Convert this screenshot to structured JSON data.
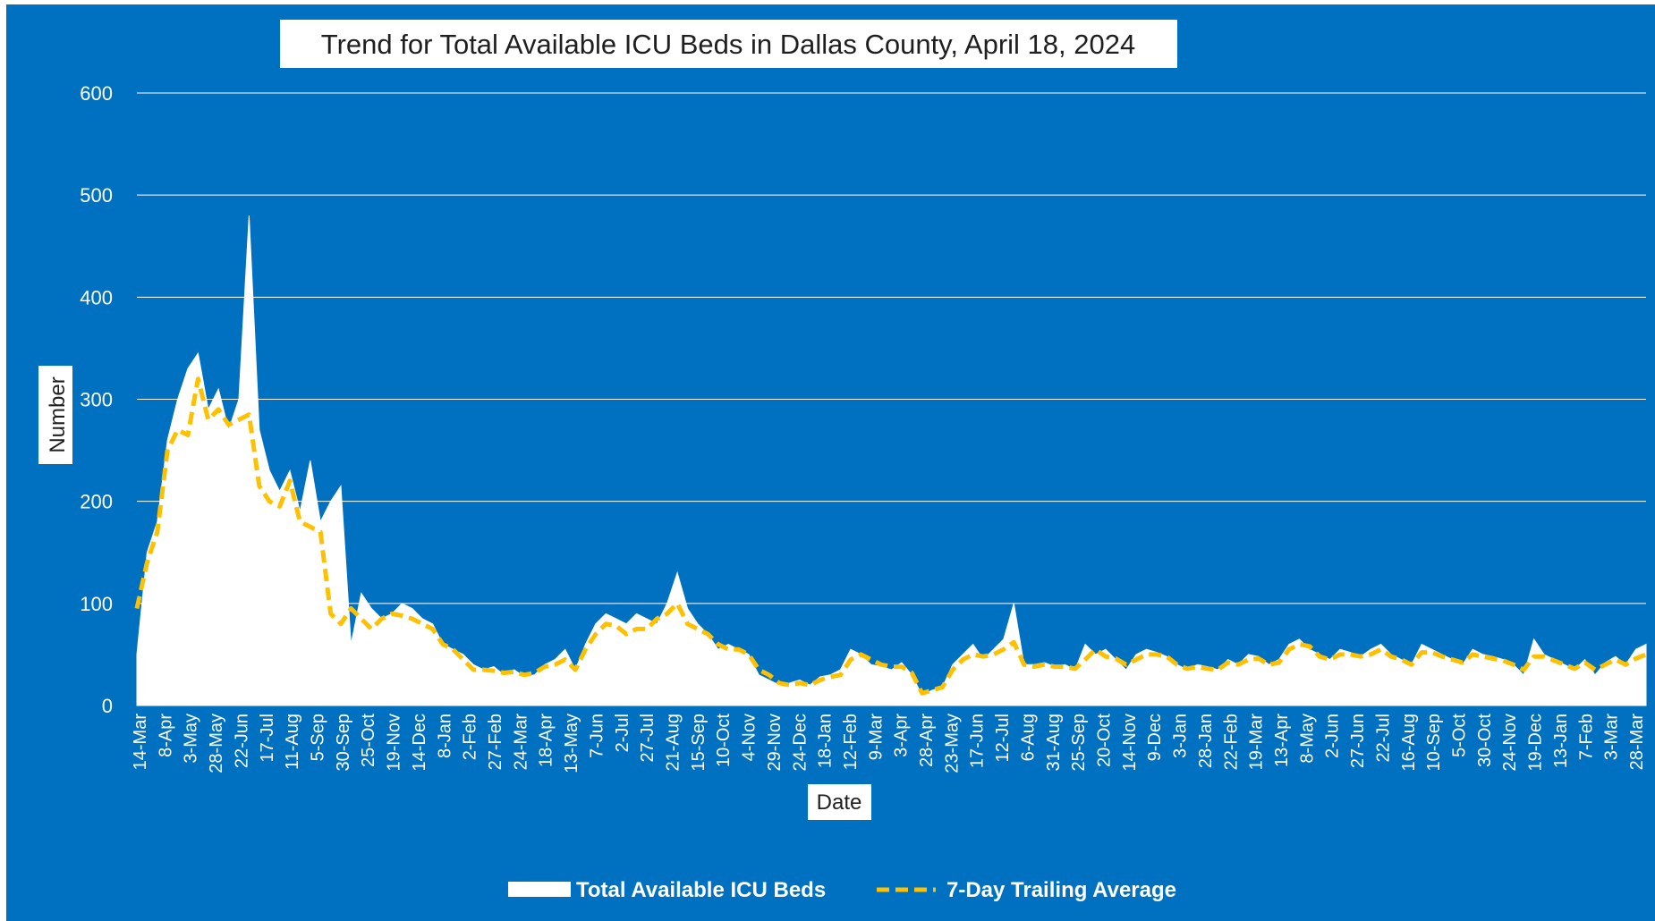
{
  "colors": {
    "plot_background": "#0070C0",
    "area_fill": "#FFFFFF",
    "average_line": "#FFC000",
    "gridline": "#FFFFFF",
    "text": "#FFFFFF",
    "title_text": "#1F1F1F"
  },
  "chart_data": {
    "type": "area",
    "title": "Trend for Total Available ICU Beds in Dallas County, April 18, 2024",
    "xlabel": "Date",
    "ylabel": "Number",
    "ylim": [
      0,
      600
    ],
    "yticks": [
      0,
      100,
      200,
      300,
      400,
      500,
      600
    ],
    "grid": true,
    "legend_position": "bottom",
    "x_tick_labels": [
      "14-Mar",
      "8-Apr",
      "3-May",
      "28-May",
      "22-Jun",
      "17-Jul",
      "11-Aug",
      "5-Sep",
      "30-Sep",
      "25-Oct",
      "19-Nov",
      "14-Dec",
      "8-Jan",
      "2-Feb",
      "27-Feb",
      "24-Mar",
      "18-Apr",
      "13-May",
      "7-Jun",
      "2-Jul",
      "27-Jul",
      "21-Aug",
      "15-Sep",
      "10-Oct",
      "4-Nov",
      "29-Nov",
      "24-Dec",
      "18-Jan",
      "12-Feb",
      "9-Mar",
      "3-Apr",
      "28-Apr",
      "23-May",
      "17-Jun",
      "12-Jul",
      "6-Aug",
      "31-Aug",
      "25-Sep",
      "20-Oct",
      "14-Nov",
      "9-Dec",
      "3-Jan",
      "28-Jan",
      "22-Feb",
      "19-Mar",
      "13-Apr",
      "8-May",
      "2-Jun",
      "27-Jun",
      "22-Jul",
      "16-Aug",
      "10-Sep",
      "5-Oct",
      "30-Oct",
      "24-Nov",
      "19-Dec",
      "13-Jan",
      "7-Feb",
      "3-Mar",
      "28-Mar"
    ],
    "series": [
      {
        "name": "Total Available ICU Beds",
        "kind": "area",
        "values": [
          50,
          150,
          180,
          260,
          300,
          330,
          345,
          290,
          310,
          270,
          300,
          480,
          270,
          230,
          210,
          230,
          190,
          240,
          180,
          200,
          215,
          60,
          110,
          95,
          85,
          90,
          100,
          95,
          85,
          80,
          60,
          55,
          50,
          40,
          35,
          38,
          30,
          35,
          28,
          30,
          40,
          45,
          55,
          35,
          60,
          80,
          90,
          85,
          80,
          90,
          85,
          80,
          100,
          130,
          95,
          80,
          70,
          55,
          60,
          55,
          50,
          30,
          25,
          20,
          22,
          25,
          20,
          28,
          30,
          35,
          55,
          50,
          40,
          38,
          35,
          42,
          30,
          10,
          15,
          18,
          40,
          50,
          60,
          45,
          55,
          65,
          100,
          40,
          40,
          42,
          38,
          40,
          35,
          60,
          50,
          55,
          45,
          35,
          50,
          55,
          52,
          48,
          40,
          35,
          40,
          38,
          35,
          45,
          40,
          50,
          48,
          40,
          45,
          60,
          65,
          55,
          50,
          45,
          55,
          52,
          48,
          55,
          60,
          50,
          45,
          40,
          60,
          55,
          50,
          45,
          40,
          55,
          50,
          48,
          45,
          40,
          30,
          65,
          50,
          45,
          40,
          35,
          45,
          30,
          42,
          48,
          40,
          55,
          60
        ]
      },
      {
        "name": "7-Day Trailing Average",
        "kind": "dashed-line",
        "values": [
          95,
          140,
          170,
          250,
          270,
          265,
          320,
          280,
          290,
          275,
          280,
          285,
          215,
          200,
          195,
          220,
          180,
          175,
          170,
          90,
          80,
          95,
          85,
          75,
          85,
          90,
          88,
          85,
          80,
          75,
          60,
          55,
          45,
          35,
          35,
          34,
          32,
          33,
          30,
          32,
          38,
          40,
          45,
          35,
          55,
          70,
          80,
          78,
          70,
          75,
          75,
          85,
          90,
          100,
          80,
          75,
          70,
          60,
          55,
          55,
          50,
          35,
          30,
          22,
          20,
          22,
          20,
          25,
          28,
          30,
          45,
          50,
          45,
          40,
          38,
          38,
          32,
          12,
          15,
          18,
          35,
          45,
          50,
          48,
          50,
          55,
          62,
          40,
          38,
          40,
          38,
          38,
          36,
          45,
          55,
          48,
          46,
          40,
          45,
          50,
          50,
          48,
          40,
          36,
          38,
          36,
          35,
          42,
          40,
          45,
          46,
          40,
          42,
          55,
          60,
          58,
          48,
          45,
          50,
          50,
          48,
          50,
          55,
          48,
          45,
          40,
          52,
          52,
          48,
          45,
          42,
          50,
          48,
          46,
          44,
          40,
          35,
          48,
          48,
          44,
          40,
          36,
          42,
          35,
          40,
          45,
          40,
          46,
          50
        ]
      }
    ]
  },
  "legend": {
    "area_label": "Total Available ICU Beds",
    "line_label": "7-Day Trailing Average"
  }
}
